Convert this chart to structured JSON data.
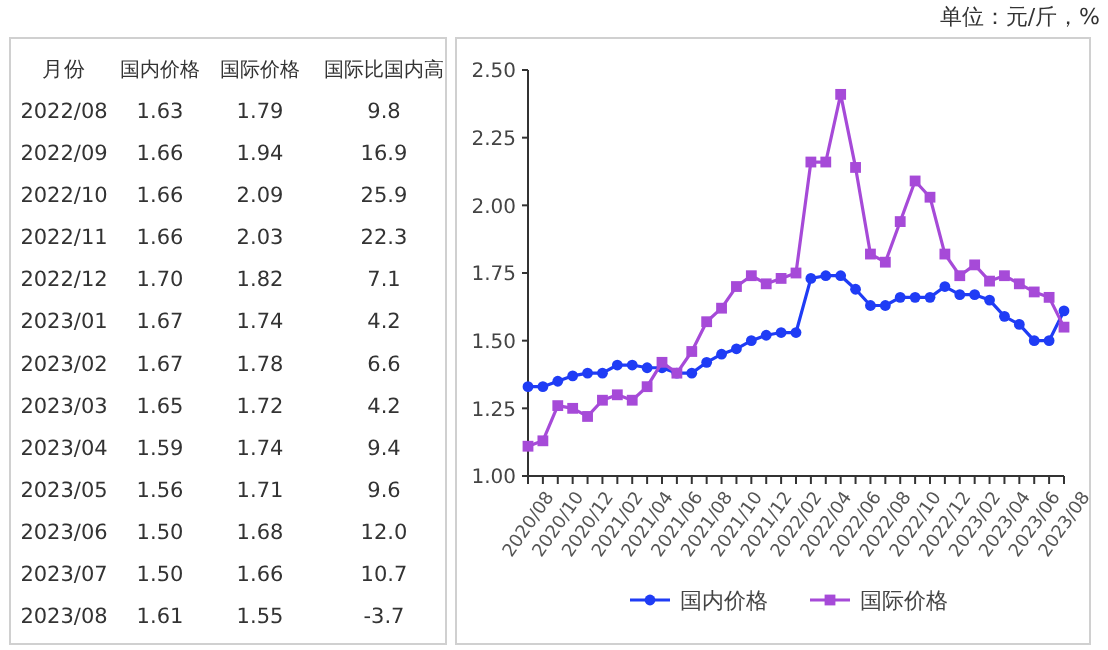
{
  "chart_data": [
    {
      "type": "other",
      "ylabel": "月份",
      "categories": [
        "2022/08",
        "2022/09",
        "2022/10",
        "2022/11",
        "2022/12",
        "2023/01",
        "2023/02",
        "2023/03",
        "2023/04",
        "2023/05",
        "2023/06",
        "2023/07",
        "2023/08"
      ],
      "series": [
        {
          "name": "国内价格",
          "values": [
            1.63,
            1.66,
            1.66,
            1.66,
            1.7,
            1.67,
            1.67,
            1.65,
            1.59,
            1.56,
            1.5,
            1.5,
            1.61
          ],
          "value_labels": [
            "1.63",
            "1.66",
            "1.66",
            "1.66",
            "1.70",
            "1.67",
            "1.67",
            "1.65",
            "1.59",
            "1.56",
            "1.50",
            "1.50",
            "1.61"
          ]
        },
        {
          "name": "国际价格",
          "values": [
            1.79,
            1.94,
            2.09,
            2.03,
            1.82,
            1.74,
            1.78,
            1.72,
            1.74,
            1.71,
            1.68,
            1.66,
            1.55
          ],
          "value_labels": [
            "1.79",
            "1.94",
            "2.09",
            "2.03",
            "1.82",
            "1.74",
            "1.78",
            "1.72",
            "1.74",
            "1.71",
            "1.68",
            "1.66",
            "1.55"
          ]
        },
        {
          "name": "国际比国内高",
          "values": [
            9.8,
            16.9,
            25.9,
            22.3,
            7.1,
            4.2,
            6.6,
            4.2,
            9.4,
            9.6,
            12.0,
            10.7,
            -3.7
          ],
          "value_labels": [
            "9.8",
            "16.9",
            "25.9",
            "22.3",
            "7.1",
            "4.2",
            "6.6",
            "4.2",
            "9.4",
            "9.6",
            "12.0",
            "10.7",
            "-3.7"
          ]
        }
      ]
    },
    {
      "type": "line",
      "annotations": [
        "单位：元/斤，%"
      ],
      "categories": [
        "2020/08",
        null,
        "2020/10",
        null,
        "2020/12",
        null,
        "2021/02",
        null,
        "2021/04",
        null,
        "2021/06",
        null,
        "2021/08",
        null,
        "2021/10",
        null,
        "2021/12",
        null,
        "2022/02",
        null,
        "2022/04",
        null,
        "2022/06",
        null,
        "2022/08",
        null,
        "2022/10",
        null,
        "2022/12",
        null,
        "2023/02",
        null,
        "2023/04",
        null,
        "2023/06",
        null,
        "2023/08"
      ],
      "ylim": [
        1,
        2.5
      ],
      "yticks": [
        {
          "value": 1,
          "label": "1.00"
        },
        {
          "value": 1.25,
          "label": "1.25"
        },
        {
          "value": 1.5,
          "label": "1.50"
        },
        {
          "value": 1.75,
          "label": "1.75"
        },
        {
          "value": 2,
          "label": "2.00"
        },
        {
          "value": 2.25,
          "label": "2.25"
        },
        {
          "value": 2.5,
          "label": "2.50"
        }
      ],
      "legend": "bottom",
      "line_style": "solid",
      "series": [
        {
          "name": "国内价格",
          "color": "#1f3cf5",
          "marker": "circle",
          "values": [
            1.33,
            1.33,
            1.35,
            1.37,
            1.38,
            1.38,
            1.41,
            1.41,
            1.4,
            1.4,
            1.38,
            1.38,
            1.42,
            1.45,
            1.47,
            1.5,
            1.52,
            1.53,
            1.53,
            1.73,
            1.74,
            1.74,
            1.69,
            1.63,
            1.63,
            1.66,
            1.66,
            1.66,
            1.7,
            1.67,
            1.67,
            1.65,
            1.59,
            1.56,
            1.5,
            1.5,
            1.61
          ]
        },
        {
          "name": "国际价格",
          "color": "#a64ad8",
          "marker": "square",
          "values": [
            1.11,
            1.13,
            1.26,
            1.25,
            1.22,
            1.28,
            1.3,
            1.28,
            1.33,
            1.42,
            1.38,
            1.46,
            1.57,
            1.62,
            1.7,
            1.74,
            1.71,
            1.73,
            1.75,
            2.16,
            2.16,
            2.41,
            2.14,
            1.82,
            1.79,
            1.94,
            2.09,
            2.03,
            1.82,
            1.74,
            1.78,
            1.72,
            1.74,
            1.71,
            1.68,
            1.66,
            1.55
          ]
        }
      ]
    }
  ]
}
